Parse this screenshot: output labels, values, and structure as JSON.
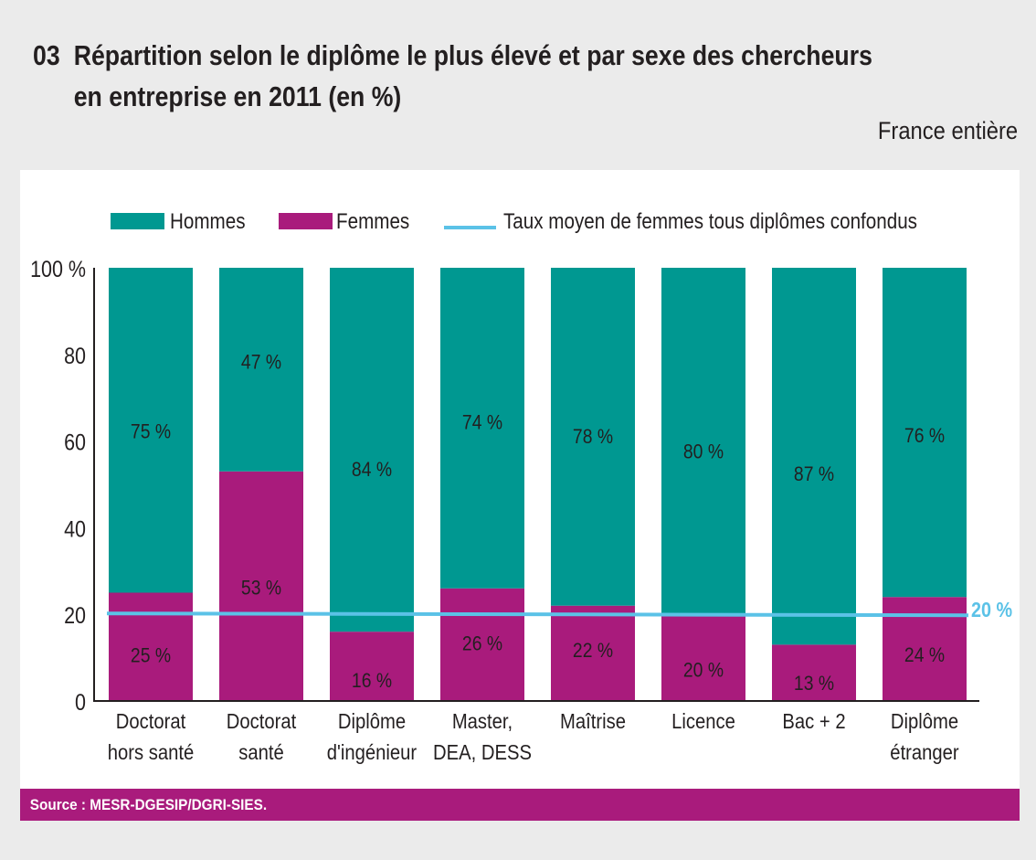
{
  "header": {
    "number": "03",
    "title_line1": "Répartition selon le diplôme le plus élevé et par sexe des chercheurs",
    "title_line2": "en entreprise en 2011 (en %)",
    "scope": "France entière"
  },
  "footer": {
    "source": "Source : MESR-DGESIP/DGRI-SIES."
  },
  "colors": {
    "hommes": "#009891",
    "femmes": "#a91b7c",
    "average_line": "#5bc2e7",
    "axis": "#231f20"
  },
  "chart_data": {
    "type": "bar",
    "stacked": true,
    "title": "Répartition selon le diplôme le plus élevé et par sexe des chercheurs en entreprise en 2011 (en %)",
    "xlabel": "",
    "ylabel": "",
    "ylim": [
      0,
      100
    ],
    "yticks": [
      0,
      20,
      40,
      60,
      80,
      100
    ],
    "ytick_labels": [
      "0",
      "20",
      "40",
      "60",
      "80",
      "100 %"
    ],
    "grid": false,
    "legend_position": "top",
    "categories": [
      [
        "Doctorat",
        "hors santé"
      ],
      [
        "Doctorat",
        "santé"
      ],
      [
        "Diplôme",
        "d'ingénieur"
      ],
      [
        "Master,",
        "DEA, DESS"
      ],
      [
        "Maîtrise"
      ],
      [
        "Licence"
      ],
      [
        "Bac + 2"
      ],
      [
        "Diplôme",
        "étranger"
      ]
    ],
    "series": [
      {
        "name": "Femmes",
        "values": [
          25,
          53,
          16,
          26,
          22,
          20,
          13,
          24
        ]
      },
      {
        "name": "Hommes",
        "values": [
          75,
          47,
          84,
          74,
          78,
          80,
          87,
          76
        ]
      }
    ],
    "legend": [
      {
        "label": "Hommes",
        "kind": "box"
      },
      {
        "label": "Femmes",
        "kind": "box"
      },
      {
        "label": "Taux moyen de femmes tous diplômes confondus",
        "kind": "line"
      }
    ],
    "reference_line": {
      "name": "Taux moyen de femmes tous diplômes confondus",
      "value": 20,
      "label": "20 %"
    }
  }
}
